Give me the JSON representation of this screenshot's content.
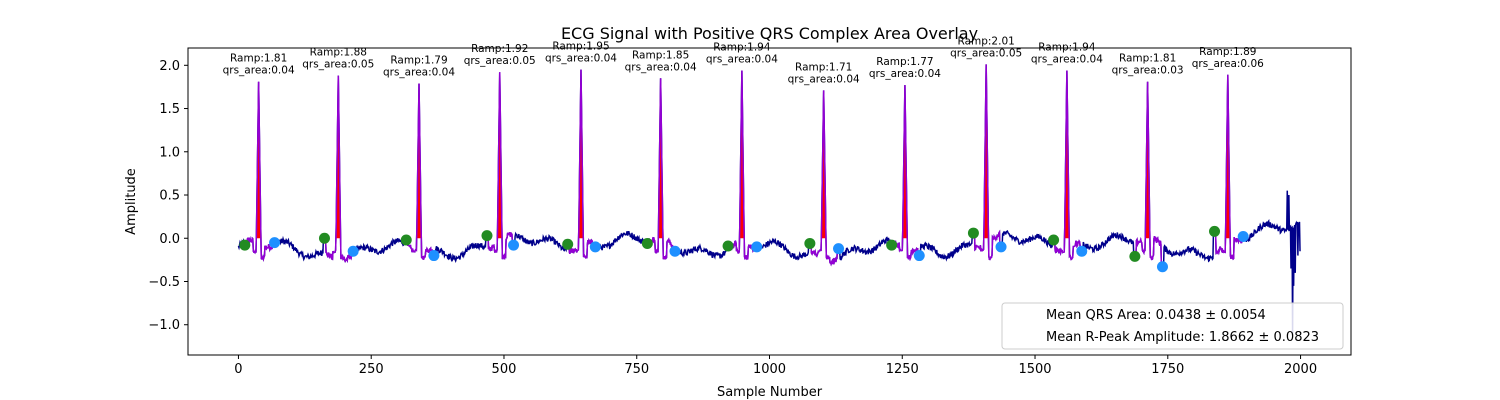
{
  "chart_data": {
    "type": "line",
    "title": "ECG Signal with Positive QRS Complex Area Overlay",
    "xlabel": "Sample Number",
    "ylabel": "Amplitude",
    "xlim": [
      -95,
      2095
    ],
    "ylim": [
      -1.35,
      2.2
    ],
    "xticks": [
      0,
      250,
      500,
      750,
      1000,
      1250,
      1500,
      1750,
      2000
    ],
    "yticks": [
      -1.0,
      -0.5,
      0.0,
      0.5,
      1.0,
      1.5,
      2.0
    ],
    "ytick_labels": [
      "−1.0",
      "−0.5",
      "0.0",
      "0.5",
      "1.0",
      "1.5",
      "2.0"
    ],
    "grid": false,
    "legend_placement": "lower-right",
    "legend": [
      "Mean QRS Area: 0.0438 ± 0.0054",
      "Mean R-Peak Amplitude: 1.8662 ± 0.0823"
    ],
    "colors": {
      "signal": "#00008b",
      "qrs_segment": "#9400d3",
      "qrs_area": "#ff0000",
      "onset_marker": "#228b22",
      "offset_marker": "#1e90ff"
    },
    "beats": [
      {
        "r_sample": 38,
        "ramp": 1.81,
        "qrs_area": 0.04,
        "onset_x": 12,
        "onset_y": -0.08,
        "offset_x": 68,
        "offset_y": -0.05
      },
      {
        "r_sample": 188,
        "ramp": 1.88,
        "qrs_area": 0.05,
        "onset_x": 162,
        "onset_y": 0.0,
        "offset_x": 216,
        "offset_y": -0.15
      },
      {
        "r_sample": 340,
        "ramp": 1.79,
        "qrs_area": 0.04,
        "onset_x": 316,
        "onset_y": -0.02,
        "offset_x": 368,
        "offset_y": -0.2
      },
      {
        "r_sample": 492,
        "ramp": 1.92,
        "qrs_area": 0.05,
        "onset_x": 468,
        "onset_y": 0.03,
        "offset_x": 518,
        "offset_y": -0.08
      },
      {
        "r_sample": 645,
        "ramp": 1.95,
        "qrs_area": 0.04,
        "onset_x": 620,
        "onset_y": -0.07,
        "offset_x": 672,
        "offset_y": -0.1
      },
      {
        "r_sample": 795,
        "ramp": 1.85,
        "qrs_area": 0.04,
        "onset_x": 770,
        "onset_y": -0.06,
        "offset_x": 822,
        "offset_y": -0.15
      },
      {
        "r_sample": 948,
        "ramp": 1.94,
        "qrs_area": 0.04,
        "onset_x": 922,
        "onset_y": -0.09,
        "offset_x": 976,
        "offset_y": -0.1
      },
      {
        "r_sample": 1102,
        "ramp": 1.71,
        "qrs_area": 0.04,
        "onset_x": 1076,
        "onset_y": -0.06,
        "offset_x": 1130,
        "offset_y": -0.12
      },
      {
        "r_sample": 1255,
        "ramp": 1.77,
        "qrs_area": 0.04,
        "onset_x": 1230,
        "onset_y": -0.08,
        "offset_x": 1282,
        "offset_y": -0.2
      },
      {
        "r_sample": 1408,
        "ramp": 2.01,
        "qrs_area": 0.05,
        "onset_x": 1384,
        "onset_y": 0.06,
        "offset_x": 1436,
        "offset_y": -0.1
      },
      {
        "r_sample": 1560,
        "ramp": 1.94,
        "qrs_area": 0.04,
        "onset_x": 1535,
        "onset_y": -0.02,
        "offset_x": 1588,
        "offset_y": -0.15
      },
      {
        "r_sample": 1712,
        "ramp": 1.81,
        "qrs_area": 0.03,
        "onset_x": 1688,
        "onset_y": -0.21,
        "offset_x": 1740,
        "offset_y": -0.33
      },
      {
        "r_sample": 1863,
        "ramp": 1.89,
        "qrs_area": 0.06,
        "onset_x": 1838,
        "onset_y": 0.08,
        "offset_x": 1892,
        "offset_y": 0.02
      }
    ]
  }
}
